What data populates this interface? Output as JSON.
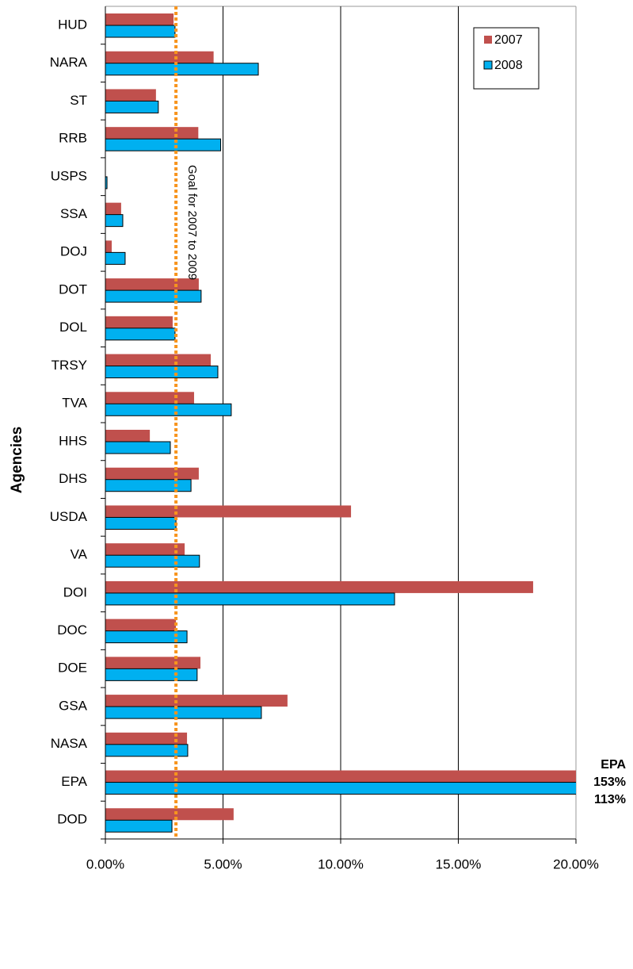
{
  "chart_data": {
    "type": "barh",
    "y_label": "Agencies",
    "categories": [
      "HUD",
      "NARA",
      "ST",
      "RRB",
      "USPS",
      "SSA",
      "DOJ",
      "DOT",
      "DOL",
      "TRSY",
      "TVA",
      "HHS",
      "DHS",
      "USDA",
      "VA",
      "DOI",
      "DOC",
      "DOE",
      "GSA",
      "NASA",
      "EPA",
      "DOD"
    ],
    "series": [
      {
        "name": "2007",
        "color": "#c0504d",
        "values": [
          2.9,
          4.6,
          2.15,
          3.95,
          0,
          0.67,
          0.27,
          3.97,
          2.86,
          4.48,
          3.77,
          1.89,
          3.97,
          10.44,
          3.37,
          18.18,
          3.0,
          4.04,
          7.74,
          3.47,
          153,
          5.45
        ],
        "value_labels": [
          null,
          null,
          null,
          null,
          null,
          null,
          null,
          null,
          null,
          null,
          null,
          null,
          null,
          null,
          null,
          null,
          null,
          null,
          null,
          null,
          "153%",
          null
        ]
      },
      {
        "name": "2008",
        "color": "#00b0f0",
        "values": [
          2.96,
          6.5,
          2.25,
          4.9,
          0.07,
          0.74,
          0.84,
          4.07,
          2.96,
          4.78,
          5.35,
          2.76,
          3.64,
          3.0,
          4.0,
          12.29,
          3.47,
          3.9,
          6.63,
          3.5,
          113,
          2.83
        ],
        "value_labels": [
          null,
          null,
          null,
          null,
          null,
          null,
          null,
          null,
          null,
          null,
          null,
          null,
          null,
          null,
          null,
          null,
          null,
          null,
          null,
          null,
          "113%",
          null
        ]
      }
    ],
    "annotation": "EPA",
    "goal": {
      "value": 3,
      "label": "Goal for 2007 to 2009",
      "color": "#f7941d"
    },
    "xlim": [
      0,
      20
    ],
    "xticks": [
      {
        "value": 0,
        "label": "0.00%"
      },
      {
        "value": 5,
        "label": "5.00%"
      },
      {
        "value": 10,
        "label": "10.00%"
      },
      {
        "value": 15,
        "label": "15.00%"
      },
      {
        "value": 20,
        "label": "20.00%"
      }
    ],
    "grid": true,
    "legend": "top-right"
  }
}
